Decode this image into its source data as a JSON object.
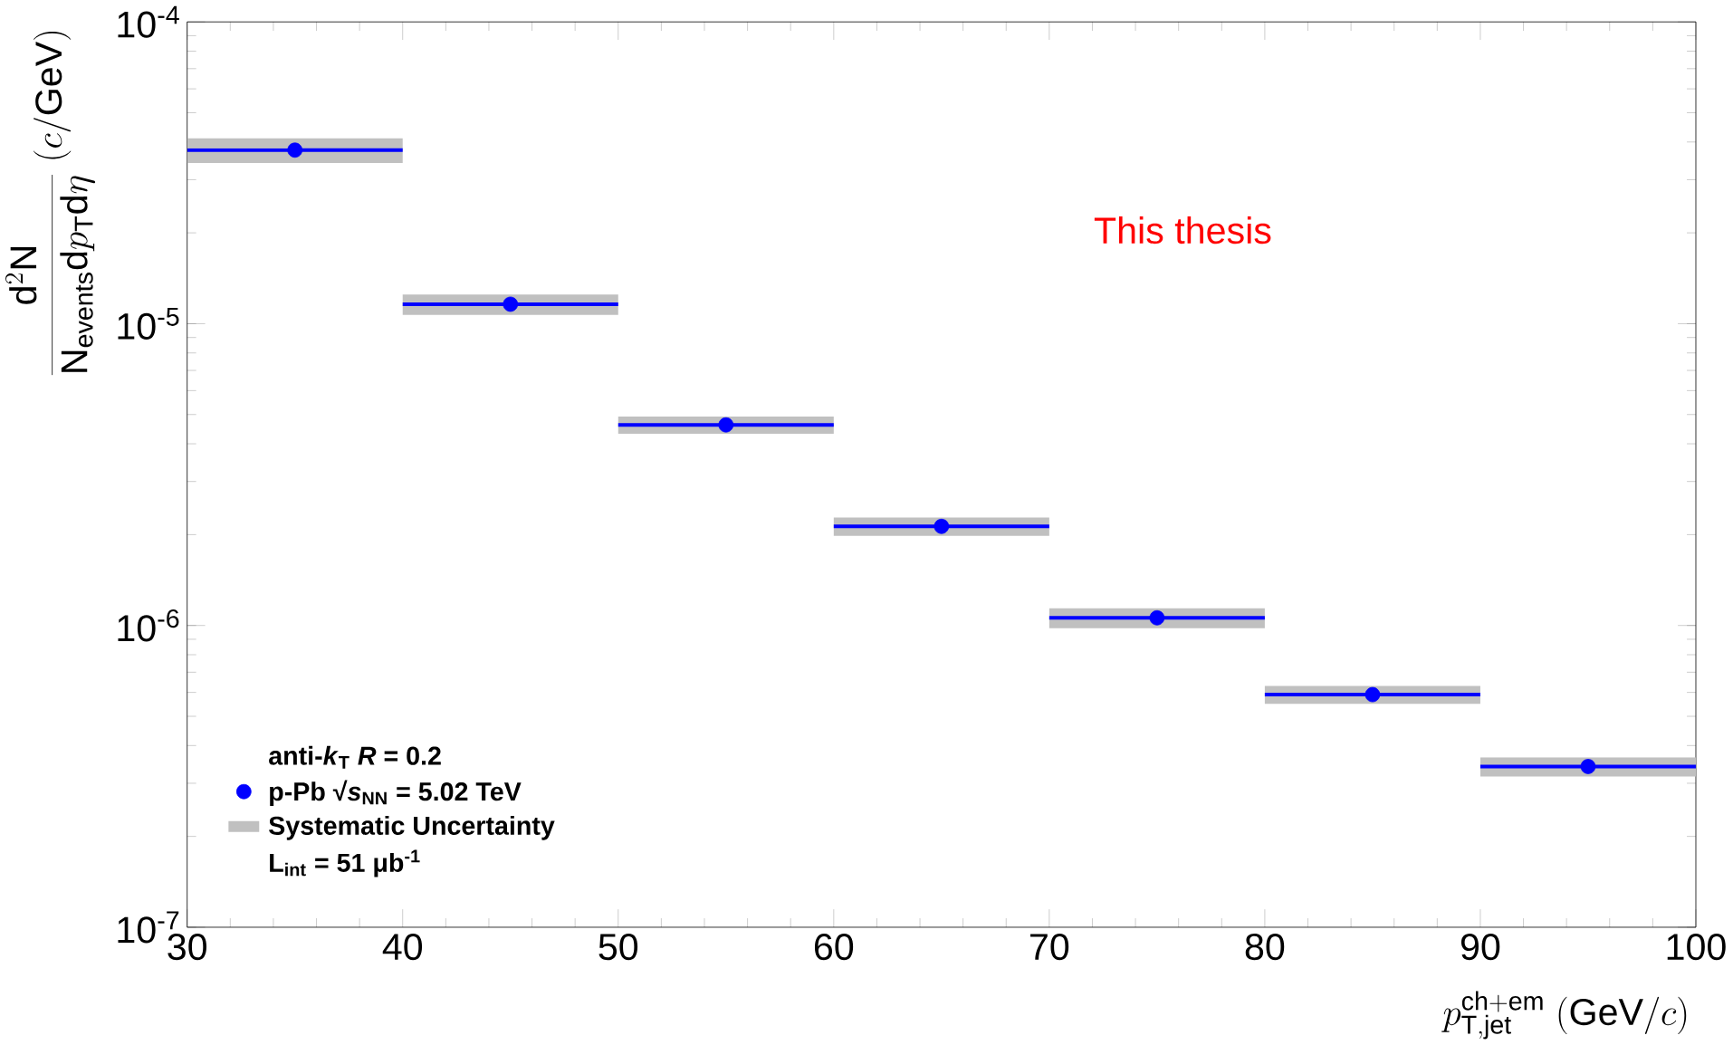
{
  "chart_data": {
    "type": "scatter",
    "xlabel": "p_{\\mathrm{T,jet}}^{\\mathrm{ch+em}}\\ (\\mathrm{GeV}/c)",
    "ylabel": "\\frac{\\mathrm{d}^{2}\\mathrm{N}}{\\mathrm{N}_{\\mathrm{events}}\\mathrm{d}p_{\\mathrm{T}}\\mathrm{d}\\eta}\\ (c/\\mathrm{GeV})",
    "x": [
      35,
      45,
      55,
      65,
      75,
      85,
      95
    ],
    "series": [
      {
        "name": "p-Pb  √*s*$_{NN}$ = 5.02 TeV",
        "color": "#0000ff",
        "values": [
          3.76e-05,
          1.16e-05,
          4.62e-06,
          2.13e-06,
          1.06e-06,
          5.9e-07,
          3.41e-07
        ],
        "xerrors": [
          5,
          5,
          5,
          5,
          5,
          5,
          5
        ]
      },
      {
        "name": "Systematic Uncertainty",
        "type": "bar",
        "color": "#c0c0c0",
        "base": [
          3.41e-05,
          1.07e-05,
          4.32e-06,
          1.98e-06,
          9.8e-07,
          5.5e-07,
          3.16e-07
        ],
        "values": [
          7e-06,
          1.8e-06,
          6e-07,
          3e-07,
          1.6e-07,
          8e-08,
          5e-08
        ]
      }
    ],
    "annotations": [
      "anti-*k*$_{T}$  *R* = 0.2",
      "L$_{int}$ = 51 μb$^{-1}$",
      "This thesis"
    ],
    "xlim": [
      30,
      100
    ],
    "xticks": [
      30,
      40,
      50,
      60,
      70,
      80,
      90,
      100
    ],
    "ylim": [
      1e-07,
      0.0001
    ],
    "yticks": [
      {
        "value": 1e-07,
        "label": "10$^{-7}$"
      },
      {
        "value": 1e-06,
        "label": "10$^{-6}$"
      },
      {
        "value": 1e-05,
        "label": "10$^{-5}$"
      },
      {
        "value": 0.0001,
        "label": "10$^{-4}$"
      }
    ],
    "log": "y",
    "grid": false,
    "legend": "bottom left",
    "marker": "circle"
  }
}
